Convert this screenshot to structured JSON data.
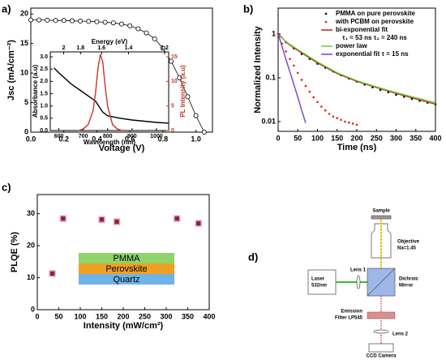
{
  "chart_data": [
    {
      "type": "line",
      "panel_label": "a)",
      "xlabel": "Voltage (V)",
      "ylabel": "Jsc (mA/cm⁻²)",
      "xlim": [
        0,
        1.1
      ],
      "xticks": [
        {
          "value": 0,
          "label": "0.0"
        },
        0.2,
        0.4,
        0.6,
        0.8,
        {
          "value": 1,
          "label": "1.0"
        }
      ],
      "ylim": [
        0,
        21
      ],
      "yticks": [
        0,
        5,
        10,
        15,
        20
      ],
      "series": [
        {
          "color": "#000000",
          "style": "open-circle-line",
          "x": [
            0,
            0.05,
            0.1,
            0.15,
            0.2,
            0.25,
            0.3,
            0.35,
            0.4,
            0.45,
            0.5,
            0.55,
            0.6,
            0.65,
            0.7,
            0.75,
            0.8,
            0.85,
            0.9,
            0.95,
            1.0,
            1.05
          ],
          "values": [
            19.0,
            19.0,
            18.95,
            18.9,
            18.9,
            18.85,
            18.8,
            18.75,
            18.7,
            18.6,
            18.5,
            18.3,
            18.0,
            17.5,
            16.8,
            15.8,
            14.2,
            12.0,
            9.2,
            6.0,
            2.8,
            0
          ]
        }
      ]
    },
    {
      "type": "line",
      "xlabel": "Wavelength (nm)",
      "ylabel": "Absorbance (a.u)",
      "y2label": "PL Intensity (a.u)",
      "x2label": "Energy (eV)",
      "xlim": [
        565,
        1050
      ],
      "xticks": [
        600,
        700,
        800,
        900,
        1000
      ],
      "x2ticks": [
        2,
        1.8,
        1.6,
        1.4,
        1.2
      ],
      "ylim": [
        0,
        3.2
      ],
      "yticks": [
        {
          "value": 0,
          "label": "0.0"
        },
        0.5,
        {
          "value": 1,
          "label": "1.0"
        },
        1.5,
        {
          "value": 2,
          "label": "2.0"
        },
        2.5,
        {
          "value": 3,
          "label": "3.0"
        }
      ],
      "y2lim": [
        0,
        16
      ],
      "y2ticks": [
        0,
        5,
        10,
        15
      ],
      "series": [
        {
          "color": "#000000",
          "style": "line",
          "x": [
            580,
            600,
            650,
            700,
            750,
            780,
            800,
            850,
            900,
            950,
            1000,
            1050
          ],
          "values": [
            2.55,
            2.35,
            1.9,
            1.55,
            1.2,
            0.75,
            0.6,
            0.5,
            0.43,
            0.38,
            0.33,
            0.3
          ]
        },
        {
          "color": "#c0392b",
          "style": "line",
          "axis": "y2",
          "x": [
            680,
            700,
            720,
            740,
            750,
            760,
            770,
            780,
            790,
            800,
            820,
            840,
            860
          ],
          "values": [
            0,
            0.3,
            1.2,
            4,
            7.5,
            12.5,
            15.5,
            14,
            9,
            5,
            1.2,
            0.3,
            0
          ]
        }
      ]
    },
    {
      "type": "line",
      "panel_label": "b)",
      "xlabel": "Time (ns)",
      "ylabel": "Normalized Intensity",
      "ylog": true,
      "xlim": [
        0,
        400
      ],
      "xticks": [
        0,
        50,
        100,
        150,
        200,
        250,
        300,
        350,
        400
      ],
      "ylim": [
        0.006,
        3.9
      ],
      "yticks": [
        0.01,
        0.1,
        1
      ],
      "annotation": "τ₁ = 53 ns  τ₂ = 240 ns",
      "series": [
        {
          "name": "PMMA on pure perovskite",
          "color": "#000000",
          "style": "dots",
          "x": [
            0,
            20,
            40,
            60,
            80,
            100,
            120,
            140,
            160,
            180,
            200,
            220,
            240,
            260,
            280,
            300,
            320,
            340,
            360,
            380,
            400
          ],
          "values": [
            1,
            0.65,
            0.47,
            0.35,
            0.27,
            0.21,
            0.17,
            0.14,
            0.115,
            0.097,
            0.082,
            0.07,
            0.061,
            0.053,
            0.047,
            0.041,
            0.037,
            0.033,
            0.03,
            0.027,
            0.025
          ]
        },
        {
          "name": "with PCBM on perovskite",
          "color": "#e02020",
          "style": "dots",
          "x": [
            0,
            10,
            20,
            30,
            40,
            50,
            60,
            70,
            80,
            90,
            100,
            110,
            120,
            130,
            140,
            150,
            160,
            170,
            180,
            190,
            200
          ],
          "values": [
            1,
            0.6,
            0.4,
            0.27,
            0.19,
            0.13,
            0.09,
            0.065,
            0.048,
            0.036,
            0.028,
            0.022,
            0.018,
            0.015,
            0.013,
            0.012,
            0.011,
            0.01,
            0.0095,
            0.009,
            0.0085
          ]
        },
        {
          "name": "bi-exponential fit",
          "color": "#b22222",
          "style": "line",
          "x": [
            0,
            25,
            50,
            100,
            150,
            200,
            250,
            300,
            350,
            400
          ],
          "values": [
            1,
            0.6,
            0.42,
            0.22,
            0.125,
            0.083,
            0.06,
            0.044,
            0.033,
            0.025
          ]
        },
        {
          "name": "power law",
          "color": "#66cc33",
          "style": "line",
          "x": [
            0,
            25,
            50,
            100,
            150,
            200,
            250,
            300,
            350,
            400
          ],
          "values": [
            0.95,
            0.62,
            0.44,
            0.23,
            0.13,
            0.086,
            0.062,
            0.046,
            0.035,
            0.027
          ]
        },
        {
          "name": "exponential fit τ = 15 ns",
          "color": "#7b3fc4",
          "style": "line",
          "x": [
            0,
            10,
            20,
            30,
            40,
            50,
            60,
            70
          ],
          "values": [
            1,
            0.51,
            0.26,
            0.135,
            0.07,
            0.036,
            0.018,
            0.0093
          ]
        }
      ]
    },
    {
      "type": "scatter",
      "panel_label": "c)",
      "xlabel": "Intensity (mW/cm²)",
      "ylabel": "PLQE (%)",
      "xlim": [
        0,
        400
      ],
      "xticks": [
        0,
        50,
        100,
        150,
        200,
        250,
        300,
        350,
        400
      ],
      "ylim": [
        0,
        36
      ],
      "yticks": [
        0,
        10,
        20,
        30
      ],
      "layers": [
        {
          "name": "PMMA",
          "color": "#8ed36b"
        },
        {
          "name": "Perovskite",
          "color": "#f0a020"
        },
        {
          "name": "Quartz",
          "color": "#6fb4e8"
        }
      ],
      "series": [
        {
          "color": "#8b2a2a",
          "style": "square",
          "x": [
            35,
            60,
            150,
            185,
            325,
            375
          ],
          "values": [
            11.3,
            28.5,
            28.2,
            27.5,
            28.5,
            27
          ]
        }
      ]
    }
  ],
  "diagram": {
    "panel_label": "d)",
    "sample": "Sample",
    "objective": [
      "Objective",
      "Na=1.45"
    ],
    "lens1": "Lens 1",
    "laser": [
      "Laser",
      "532nm"
    ],
    "mirror": [
      "Dichroic",
      "Mirror"
    ],
    "filter": [
      "Emission",
      "Filter LP545"
    ],
    "lens2": "Lens 2",
    "camera": "CCD Camera"
  }
}
